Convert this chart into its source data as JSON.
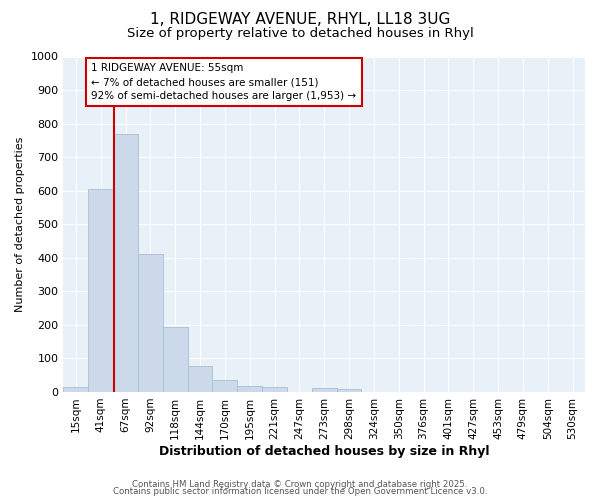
{
  "title": "1, RIDGEWAY AVENUE, RHYL, LL18 3UG",
  "subtitle": "Size of property relative to detached houses in Rhyl",
  "xlabel": "Distribution of detached houses by size in Rhyl",
  "ylabel": "Number of detached properties",
  "bar_labels": [
    "15sqm",
    "41sqm",
    "67sqm",
    "92sqm",
    "118sqm",
    "144sqm",
    "170sqm",
    "195sqm",
    "221sqm",
    "247sqm",
    "273sqm",
    "298sqm",
    "324sqm",
    "350sqm",
    "376sqm",
    "401sqm",
    "427sqm",
    "453sqm",
    "479sqm",
    "504sqm",
    "530sqm"
  ],
  "bar_values": [
    15,
    605,
    770,
    410,
    195,
    78,
    37,
    18,
    15,
    0,
    12,
    10,
    0,
    0,
    0,
    0,
    0,
    0,
    0,
    0,
    0
  ],
  "bar_color": "#ccd9ea",
  "bar_edgecolor": "#a8bfd4",
  "ylim": [
    0,
    1000
  ],
  "yticks": [
    0,
    100,
    200,
    300,
    400,
    500,
    600,
    700,
    800,
    900,
    1000
  ],
  "vline_x": 1.54,
  "vline_color": "#cc0000",
  "annotation_text": "1 RIDGEWAY AVENUE: 55sqm\n← 7% of detached houses are smaller (151)\n92% of semi-detached houses are larger (1,953) →",
  "annotation_box_color": "#cc0000",
  "annotation_bg": "#ffffff",
  "plot_bg_color": "#e8f0f8",
  "fig_bg_color": "#ffffff",
  "grid_color": "#ffffff",
  "title_fontsize": 11,
  "subtitle_fontsize": 9.5,
  "tick_fontsize": 7.5,
  "ylabel_fontsize": 8,
  "xlabel_fontsize": 9,
  "footer_line1": "Contains HM Land Registry data © Crown copyright and database right 2025.",
  "footer_line2": "Contains public sector information licensed under the Open Government Licence v3.0."
}
